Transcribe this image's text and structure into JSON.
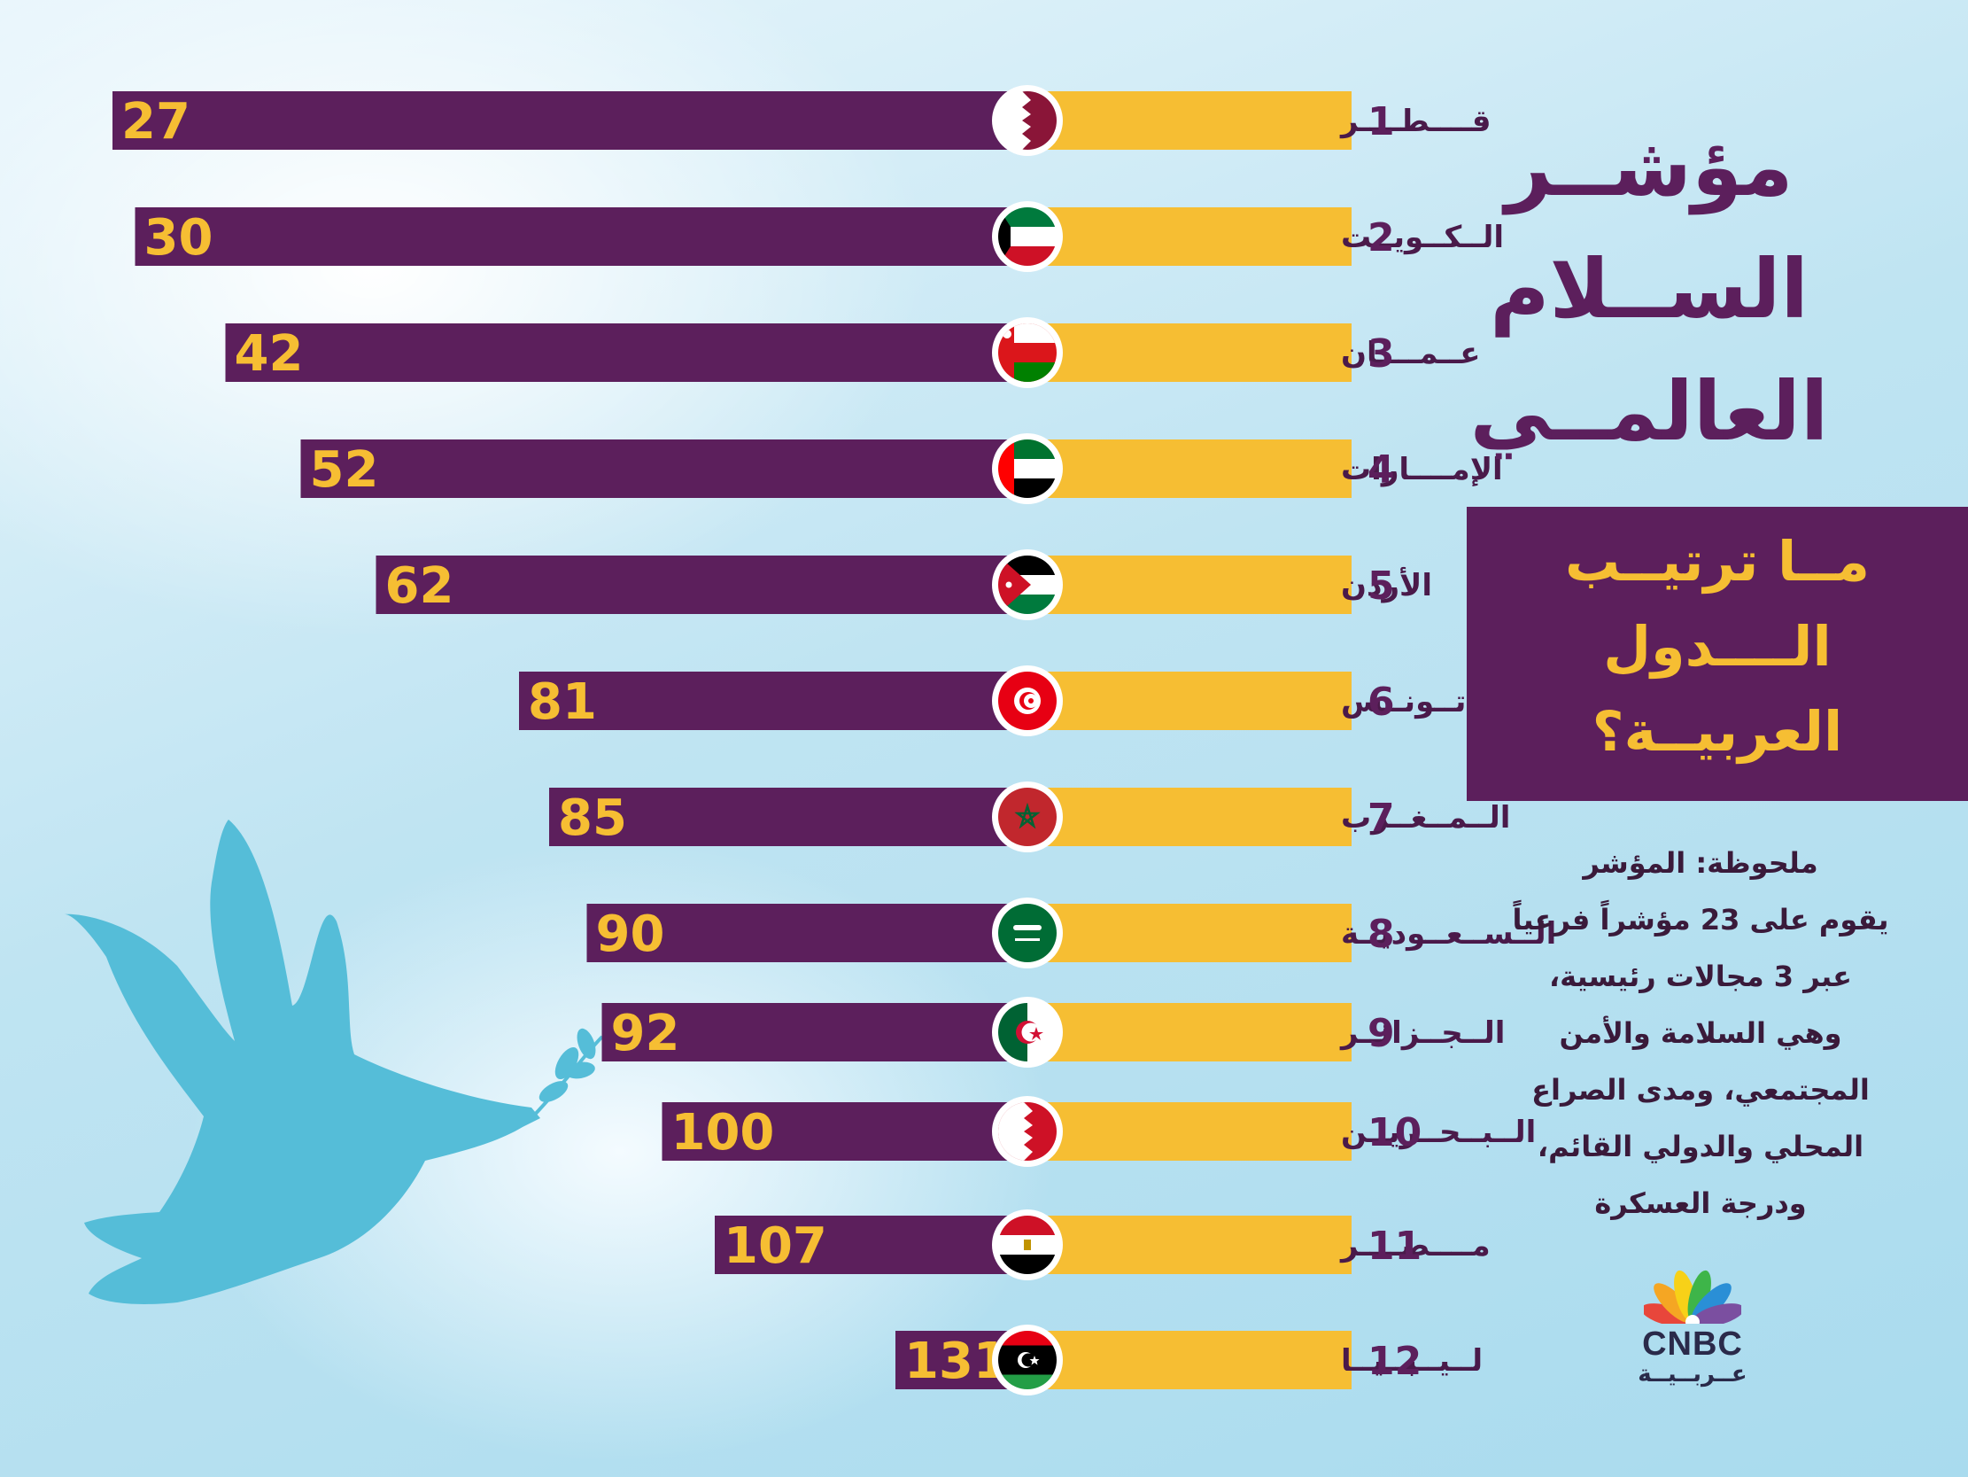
{
  "title_lines": [
    "مؤشــر",
    "الســلام",
    "العالمــي"
  ],
  "subtitle_lines": [
    "مــا ترتيــب",
    "الــــدول",
    "العربيــة؟"
  ],
  "note_lines": [
    "ملحوظة: المؤشر",
    "يقوم على 23 مؤشراً فرعياً",
    "عبر 3 مجالات رئيسية،",
    "وهي السلامة والأمن",
    "المجتمعي، ومدى الصراع",
    "المحلي والدولي القائم،",
    "ودرجة العسكرة"
  ],
  "logo": {
    "text": "CNBC",
    "sub": "عــربــيــة"
  },
  "colors": {
    "bar": "#5c1f5c",
    "label_bg": "#f6be33",
    "accent": "#f6be33",
    "dove": "#55bdd8"
  },
  "chart_data": {
    "type": "bar",
    "orientation": "horizontal",
    "title": "مؤشــر الســلام العالمــي",
    "subtitle": "مــا ترتيــب الــــدول العربيــة؟",
    "categories": [
      "قــــطــــر",
      "الــكــويــت",
      "عــمــــان",
      "الإمــــارات",
      "الأردن",
      "تــونــس",
      "الــمــغــرب",
      "الــســعــوديــة",
      "الــجــزائــر",
      "الــبــحــريــن",
      "مــــصــــر",
      "لــيــبــيــا"
    ],
    "ranks": [
      "1",
      "2",
      "3",
      "4",
      "5",
      "6",
      "7",
      "8",
      "9",
      "10",
      "11",
      "12"
    ],
    "values": [
      27,
      30,
      42,
      52,
      62,
      81,
      85,
      90,
      92,
      100,
      107,
      131
    ],
    "flags": [
      "qatar",
      "kuwait",
      "oman",
      "uae",
      "jordan",
      "tunisia",
      "morocco",
      "saudi",
      "algeria",
      "bahrain",
      "egypt",
      "libya"
    ]
  }
}
